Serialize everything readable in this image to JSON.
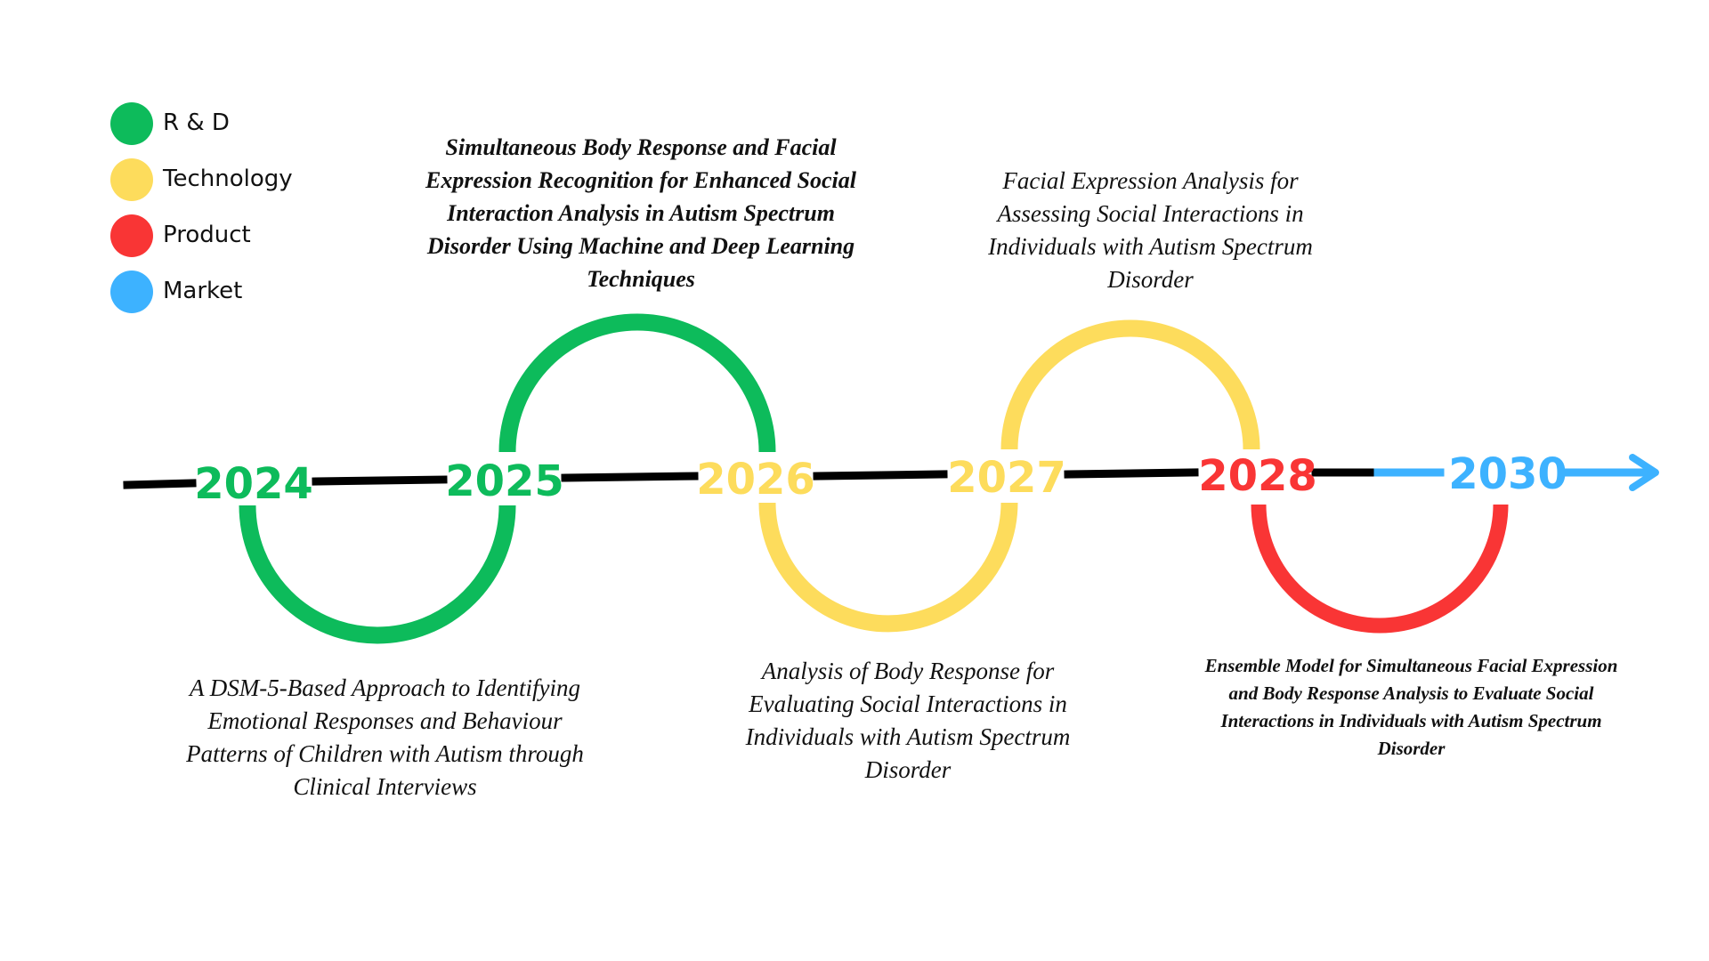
{
  "legend": [
    {
      "label": "R & D",
      "color": "#0dbb5b"
    },
    {
      "label": "Technology",
      "color": "#fddc5c"
    },
    {
      "label": "Product",
      "color": "#f93535"
    },
    {
      "label": "Market",
      "color": "#3db2ff"
    }
  ],
  "colors": {
    "rnd": "#0dbb5b",
    "technology": "#fddc5c",
    "product": "#f93535",
    "market": "#3db2ff",
    "line": "#000000"
  },
  "years": [
    {
      "label": "2024",
      "category": "rnd"
    },
    {
      "label": "2025",
      "category": "rnd"
    },
    {
      "label": "2026",
      "category": "technology"
    },
    {
      "label": "2027",
      "category": "technology"
    },
    {
      "label": "2028",
      "category": "product"
    },
    {
      "label": "2030",
      "category": "market"
    }
  ],
  "arcs": [
    {
      "from": "2024",
      "to": "2025",
      "side": "below",
      "category": "rnd"
    },
    {
      "from": "2025",
      "to": "2026",
      "side": "above",
      "category": "rnd"
    },
    {
      "from": "2026",
      "to": "2027",
      "side": "below",
      "category": "technology"
    },
    {
      "from": "2027",
      "to": "2028",
      "side": "above",
      "category": "technology"
    },
    {
      "from": "2028",
      "to": "2030",
      "side": "below",
      "category": "product"
    }
  ],
  "milestones": [
    {
      "category": "rnd",
      "style": "normal",
      "text": "A DSM-5-Based Approach to Identifying Emotional Responses and Behaviour Patterns of Children with Autism through Clinical Interviews"
    },
    {
      "category": "rnd",
      "style": "bold",
      "text": "Simultaneous Body Response and Facial Expression Recognition for Enhanced Social Interaction Analysis in Autism Spectrum Disorder Using Machine and Deep Learning Techniques"
    },
    {
      "category": "technology",
      "style": "normal",
      "text": "Analysis of Body Response for Evaluating Social Interactions in Individuals with Autism Spectrum Disorder"
    },
    {
      "category": "technology",
      "style": "normal",
      "text": "Facial Expression Analysis for Assessing Social Interactions in Individuals with Autism Spectrum Disorder"
    },
    {
      "category": "product",
      "style": "bold",
      "text": "Ensemble Model for Simultaneous Facial Expression and Body Response Analysis to Evaluate Social Interactions in Individuals with Autism Spectrum Disorder"
    }
  ]
}
